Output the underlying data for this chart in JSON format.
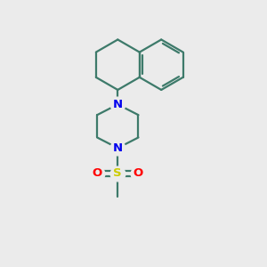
{
  "background_color": "#ebebeb",
  "bond_color": "#3d7a6a",
  "N_color": "#0000ee",
  "S_color": "#cccc00",
  "O_color": "#ff0000",
  "bond_width": 1.6,
  "fig_width": 3.0,
  "fig_height": 3.0,
  "dpi": 100,
  "xlim": [
    0,
    10
  ],
  "ylim": [
    0,
    10
  ]
}
